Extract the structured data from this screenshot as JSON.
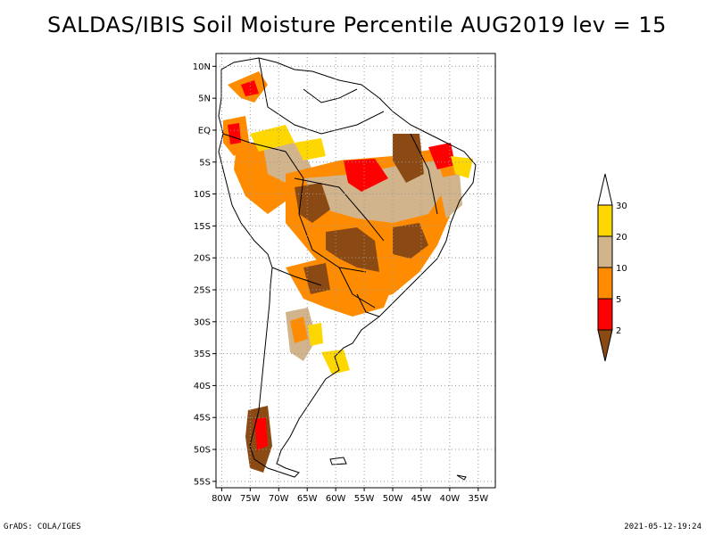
{
  "title": "SALDAS/IBIS Soil Moisture Percentile AUG2019 lev = 15",
  "footer": {
    "left": "GrADS: COLA/IGES",
    "right": "2021-05-12-19:24"
  },
  "axes": {
    "lat_ticks": [
      "10N",
      "5N",
      "EQ",
      "5S",
      "10S",
      "15S",
      "20S",
      "25S",
      "30S",
      "35S",
      "40S",
      "45S",
      "50S",
      "55S"
    ],
    "lat_values": [
      10,
      5,
      0,
      -5,
      -10,
      -15,
      -20,
      -25,
      -30,
      -35,
      -40,
      -45,
      -50,
      -55
    ],
    "lon_ticks": [
      "80W",
      "75W",
      "70W",
      "65W",
      "60W",
      "55W",
      "50W",
      "45W",
      "40W",
      "35W"
    ],
    "lon_values": [
      -80,
      -75,
      -70,
      -65,
      -60,
      -55,
      -50,
      -45,
      -40,
      -35
    ],
    "lon_range": [
      -81,
      -32
    ],
    "lat_range": [
      -56,
      12
    ],
    "grid": "dotted"
  },
  "colorbar": {
    "labels": [
      "30",
      "20",
      "10",
      "5",
      "2"
    ],
    "levels": [
      {
        "range": "<2",
        "color": "#8b4a14"
      },
      {
        "range": "2-5",
        "color": "#ff0000"
      },
      {
        "range": "5-10",
        "color": "#ff8c00"
      },
      {
        "range": "10-20",
        "color": "#d2b48c"
      },
      {
        "range": "20-30",
        "color": "#ffd700"
      },
      {
        "range": ">30",
        "color": "#ffffff"
      }
    ]
  },
  "colors": {
    "brown": "#8b4a14",
    "red": "#ff0000",
    "orange": "#ff8c00",
    "tan": "#d2b48c",
    "gold": "#ffd700"
  }
}
